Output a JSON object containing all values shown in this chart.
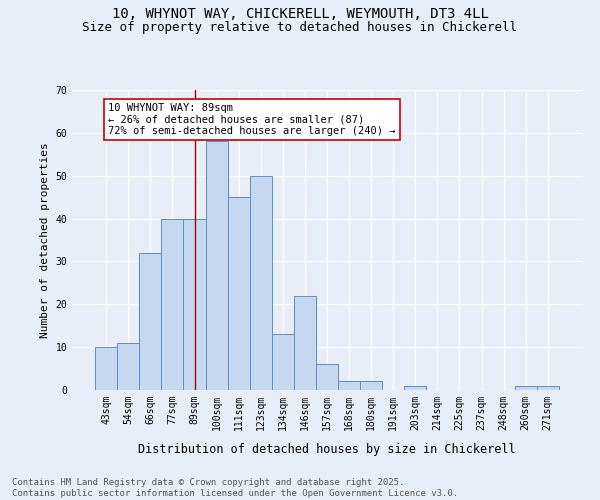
{
  "title": "10, WHYNOT WAY, CHICKERELL, WEYMOUTH, DT3 4LL",
  "subtitle": "Size of property relative to detached houses in Chickerell",
  "xlabel": "Distribution of detached houses by size in Chickerell",
  "ylabel": "Number of detached properties",
  "footer_line1": "Contains HM Land Registry data © Crown copyright and database right 2025.",
  "footer_line2": "Contains public sector information licensed under the Open Government Licence v3.0.",
  "categories": [
    "43sqm",
    "54sqm",
    "66sqm",
    "77sqm",
    "89sqm",
    "100sqm",
    "111sqm",
    "123sqm",
    "134sqm",
    "146sqm",
    "157sqm",
    "168sqm",
    "180sqm",
    "191sqm",
    "203sqm",
    "214sqm",
    "225sqm",
    "237sqm",
    "248sqm",
    "260sqm",
    "271sqm"
  ],
  "values": [
    10,
    11,
    32,
    40,
    40,
    58,
    45,
    50,
    13,
    22,
    6,
    2,
    2,
    0,
    1,
    0,
    0,
    0,
    0,
    1,
    1
  ],
  "bar_color": "#c5d8f0",
  "bar_edge_color": "#5b8fc7",
  "highlight_index": 4,
  "highlight_line_color": "#aa0000",
  "annotation_text": "10 WHYNOT WAY: 89sqm\n← 26% of detached houses are smaller (87)\n72% of semi-detached houses are larger (240) →",
  "annotation_box_color": "#ffffff",
  "annotation_edge_color": "#cc0000",
  "ylim": [
    0,
    70
  ],
  "yticks": [
    0,
    10,
    20,
    30,
    40,
    50,
    60,
    70
  ],
  "bg_color": "#e8eef7",
  "plot_bg_color": "#e8eef7",
  "grid_color": "#ffffff",
  "title_fontsize": 10,
  "subtitle_fontsize": 9,
  "xlabel_fontsize": 8.5,
  "ylabel_fontsize": 8,
  "tick_fontsize": 7,
  "footer_fontsize": 6.5,
  "annot_fontsize": 7.5
}
